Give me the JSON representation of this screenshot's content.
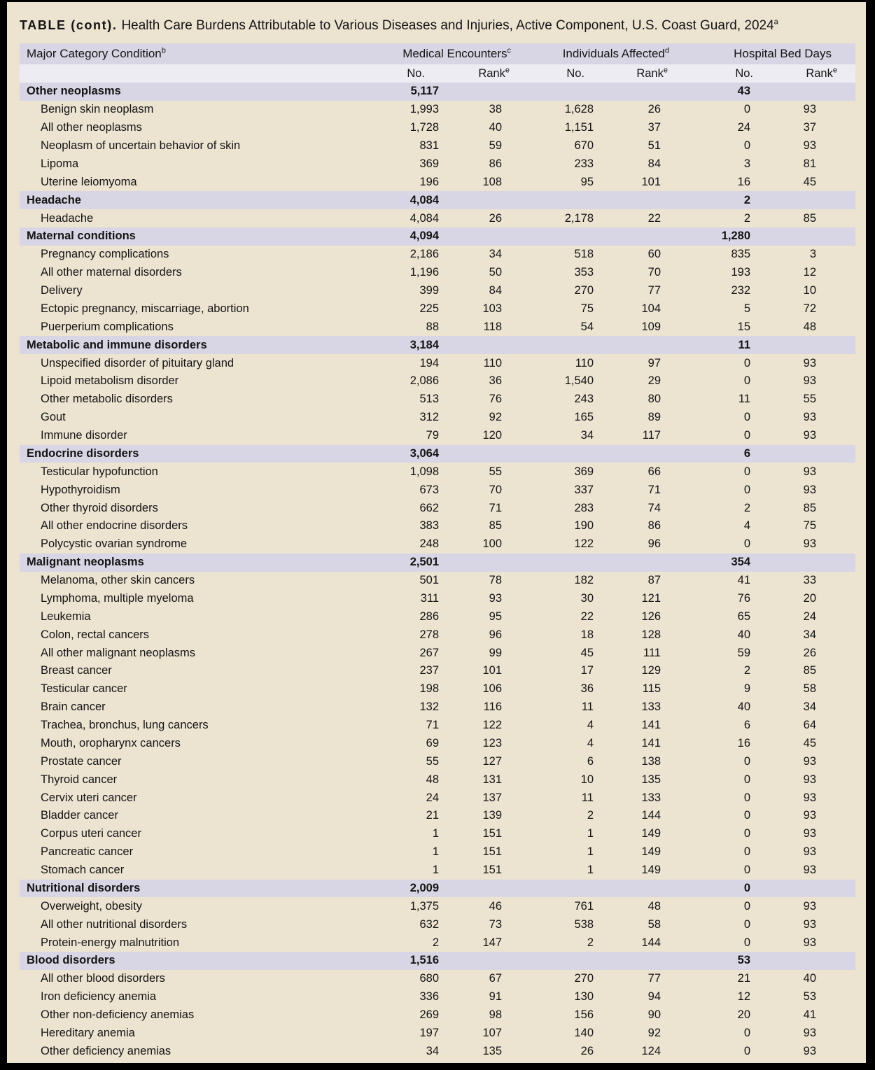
{
  "colors": {
    "frame": "#000000",
    "background": "#ECE3D1",
    "header_band": "#D8D6E4",
    "subheader_band": "#EDECF3",
    "text": "#141414"
  },
  "title": {
    "prefix": "TABLE (cont).",
    "text": "Health Care Burdens Attributable to Various Diseases and Injuries, Active Component, U.S. Coast Guard, 2024",
    "sup": "a"
  },
  "table": {
    "condition_header": {
      "label": "Major Category Condition",
      "sup": "b"
    },
    "groups": [
      {
        "label": "Medical Encounters",
        "sup": "c"
      },
      {
        "label": "Individuals Affected",
        "sup": "d"
      },
      {
        "label": "Hospital Bed Days",
        "sup": ""
      }
    ],
    "subheaders": {
      "no": "No.",
      "rank": "Rank",
      "rank_sup": "e"
    },
    "sections": [
      {
        "name": "Other neoplasms",
        "me_no": "5,117",
        "hbd_no": "43",
        "rows": [
          {
            "condition": "Benign skin neoplasm",
            "me_no": "1,993",
            "me_rank": "38",
            "ia_no": "1,628",
            "ia_rank": "26",
            "hbd_no": "0",
            "hbd_rank": "93"
          },
          {
            "condition": "All other neoplasms",
            "me_no": "1,728",
            "me_rank": "40",
            "ia_no": "1,151",
            "ia_rank": "37",
            "hbd_no": "24",
            "hbd_rank": "37"
          },
          {
            "condition": "Neoplasm of uncertain behavior of skin",
            "me_no": "831",
            "me_rank": "59",
            "ia_no": "670",
            "ia_rank": "51",
            "hbd_no": "0",
            "hbd_rank": "93"
          },
          {
            "condition": "Lipoma",
            "me_no": "369",
            "me_rank": "86",
            "ia_no": "233",
            "ia_rank": "84",
            "hbd_no": "3",
            "hbd_rank": "81"
          },
          {
            "condition": "Uterine leiomyoma",
            "me_no": "196",
            "me_rank": "108",
            "ia_no": "95",
            "ia_rank": "101",
            "hbd_no": "16",
            "hbd_rank": "45"
          }
        ]
      },
      {
        "name": "Headache",
        "me_no": "4,084",
        "hbd_no": "2",
        "rows": [
          {
            "condition": "Headache",
            "me_no": "4,084",
            "me_rank": "26",
            "ia_no": "2,178",
            "ia_rank": "22",
            "hbd_no": "2",
            "hbd_rank": "85"
          }
        ]
      },
      {
        "name": "Maternal conditions",
        "me_no": "4,094",
        "hbd_no": "1,280",
        "rows": [
          {
            "condition": "Pregnancy complications",
            "me_no": "2,186",
            "me_rank": "34",
            "ia_no": "518",
            "ia_rank": "60",
            "hbd_no": "835",
            "hbd_rank": "3"
          },
          {
            "condition": "All other maternal disorders",
            "me_no": "1,196",
            "me_rank": "50",
            "ia_no": "353",
            "ia_rank": "70",
            "hbd_no": "193",
            "hbd_rank": "12"
          },
          {
            "condition": "Delivery",
            "me_no": "399",
            "me_rank": "84",
            "ia_no": "270",
            "ia_rank": "77",
            "hbd_no": "232",
            "hbd_rank": "10"
          },
          {
            "condition": "Ectopic pregnancy, miscarriage, abortion",
            "me_no": "225",
            "me_rank": "103",
            "ia_no": "75",
            "ia_rank": "104",
            "hbd_no": "5",
            "hbd_rank": "72"
          },
          {
            "condition": "Puerperium complications",
            "me_no": "88",
            "me_rank": "118",
            "ia_no": "54",
            "ia_rank": "109",
            "hbd_no": "15",
            "hbd_rank": "48"
          }
        ]
      },
      {
        "name": "Metabolic and immune disorders",
        "me_no": "3,184",
        "hbd_no": "11",
        "rows": [
          {
            "condition": "Unspecified disorder of pituitary gland",
            "me_no": "194",
            "me_rank": "110",
            "ia_no": "110",
            "ia_rank": "97",
            "hbd_no": "0",
            "hbd_rank": "93"
          },
          {
            "condition": "Lipoid metabolism disorder",
            "me_no": "2,086",
            "me_rank": "36",
            "ia_no": "1,540",
            "ia_rank": "29",
            "hbd_no": "0",
            "hbd_rank": "93"
          },
          {
            "condition": "Other metabolic disorders",
            "me_no": "513",
            "me_rank": "76",
            "ia_no": "243",
            "ia_rank": "80",
            "hbd_no": "11",
            "hbd_rank": "55"
          },
          {
            "condition": "Gout",
            "me_no": "312",
            "me_rank": "92",
            "ia_no": "165",
            "ia_rank": "89",
            "hbd_no": "0",
            "hbd_rank": "93"
          },
          {
            "condition": "Immune disorder",
            "me_no": "79",
            "me_rank": "120",
            "ia_no": "34",
            "ia_rank": "117",
            "hbd_no": "0",
            "hbd_rank": "93"
          }
        ]
      },
      {
        "name": "Endocrine disorders",
        "me_no": "3,064",
        "hbd_no": "6",
        "rows": [
          {
            "condition": "Testicular hypofunction",
            "me_no": "1,098",
            "me_rank": "55",
            "ia_no": "369",
            "ia_rank": "66",
            "hbd_no": "0",
            "hbd_rank": "93"
          },
          {
            "condition": "Hypothyroidism",
            "me_no": "673",
            "me_rank": "70",
            "ia_no": "337",
            "ia_rank": "71",
            "hbd_no": "0",
            "hbd_rank": "93"
          },
          {
            "condition": "Other thyroid disorders",
            "me_no": "662",
            "me_rank": "71",
            "ia_no": "283",
            "ia_rank": "74",
            "hbd_no": "2",
            "hbd_rank": "85"
          },
          {
            "condition": "All other endocrine disorders",
            "me_no": "383",
            "me_rank": "85",
            "ia_no": "190",
            "ia_rank": "86",
            "hbd_no": "4",
            "hbd_rank": "75"
          },
          {
            "condition": "Polycystic ovarian syndrome",
            "me_no": "248",
            "me_rank": "100",
            "ia_no": "122",
            "ia_rank": "96",
            "hbd_no": "0",
            "hbd_rank": "93"
          }
        ]
      },
      {
        "name": "Malignant neoplasms",
        "me_no": "2,501",
        "hbd_no": "354",
        "rows": [
          {
            "condition": "Melanoma, other skin cancers",
            "me_no": "501",
            "me_rank": "78",
            "ia_no": "182",
            "ia_rank": "87",
            "hbd_no": "41",
            "hbd_rank": "33"
          },
          {
            "condition": "Lymphoma, multiple myeloma",
            "me_no": "311",
            "me_rank": "93",
            "ia_no": "30",
            "ia_rank": "121",
            "hbd_no": "76",
            "hbd_rank": "20"
          },
          {
            "condition": "Leukemia",
            "me_no": "286",
            "me_rank": "95",
            "ia_no": "22",
            "ia_rank": "126",
            "hbd_no": "65",
            "hbd_rank": "24"
          },
          {
            "condition": "Colon, rectal cancers",
            "me_no": "278",
            "me_rank": "96",
            "ia_no": "18",
            "ia_rank": "128",
            "hbd_no": "40",
            "hbd_rank": "34"
          },
          {
            "condition": "All other malignant neoplasms",
            "me_no": "267",
            "me_rank": "99",
            "ia_no": "45",
            "ia_rank": "111",
            "hbd_no": "59",
            "hbd_rank": "26"
          },
          {
            "condition": "Breast cancer",
            "me_no": "237",
            "me_rank": "101",
            "ia_no": "17",
            "ia_rank": "129",
            "hbd_no": "2",
            "hbd_rank": "85"
          },
          {
            "condition": "Testicular cancer",
            "me_no": "198",
            "me_rank": "106",
            "ia_no": "36",
            "ia_rank": "115",
            "hbd_no": "9",
            "hbd_rank": "58"
          },
          {
            "condition": "Brain cancer",
            "me_no": "132",
            "me_rank": "116",
            "ia_no": "11",
            "ia_rank": "133",
            "hbd_no": "40",
            "hbd_rank": "34"
          },
          {
            "condition": "Trachea, bronchus, lung cancers",
            "me_no": "71",
            "me_rank": "122",
            "ia_no": "4",
            "ia_rank": "141",
            "hbd_no": "6",
            "hbd_rank": "64"
          },
          {
            "condition": "Mouth, oropharynx cancers",
            "me_no": "69",
            "me_rank": "123",
            "ia_no": "4",
            "ia_rank": "141",
            "hbd_no": "16",
            "hbd_rank": "45"
          },
          {
            "condition": "Prostate cancer",
            "me_no": "55",
            "me_rank": "127",
            "ia_no": "6",
            "ia_rank": "138",
            "hbd_no": "0",
            "hbd_rank": "93"
          },
          {
            "condition": "Thyroid cancer",
            "me_no": "48",
            "me_rank": "131",
            "ia_no": "10",
            "ia_rank": "135",
            "hbd_no": "0",
            "hbd_rank": "93"
          },
          {
            "condition": "Cervix uteri cancer",
            "me_no": "24",
            "me_rank": "137",
            "ia_no": "11",
            "ia_rank": "133",
            "hbd_no": "0",
            "hbd_rank": "93"
          },
          {
            "condition": "Bladder cancer",
            "me_no": "21",
            "me_rank": "139",
            "ia_no": "2",
            "ia_rank": "144",
            "hbd_no": "0",
            "hbd_rank": "93"
          },
          {
            "condition": "Corpus uteri cancer",
            "me_no": "1",
            "me_rank": "151",
            "ia_no": "1",
            "ia_rank": "149",
            "hbd_no": "0",
            "hbd_rank": "93"
          },
          {
            "condition": "Pancreatic cancer",
            "me_no": "1",
            "me_rank": "151",
            "ia_no": "1",
            "ia_rank": "149",
            "hbd_no": "0",
            "hbd_rank": "93"
          },
          {
            "condition": "Stomach cancer",
            "me_no": "1",
            "me_rank": "151",
            "ia_no": "1",
            "ia_rank": "149",
            "hbd_no": "0",
            "hbd_rank": "93"
          }
        ]
      },
      {
        "name": "Nutritional disorders",
        "me_no": "2,009",
        "hbd_no": "0",
        "rows": [
          {
            "condition": "Overweight, obesity",
            "me_no": "1,375",
            "me_rank": "46",
            "ia_no": "761",
            "ia_rank": "48",
            "hbd_no": "0",
            "hbd_rank": "93"
          },
          {
            "condition": "All other nutritional disorders",
            "me_no": "632",
            "me_rank": "73",
            "ia_no": "538",
            "ia_rank": "58",
            "hbd_no": "0",
            "hbd_rank": "93"
          },
          {
            "condition": "Protein-energy malnutrition",
            "me_no": "2",
            "me_rank": "147",
            "ia_no": "2",
            "ia_rank": "144",
            "hbd_no": "0",
            "hbd_rank": "93"
          }
        ]
      },
      {
        "name": "Blood disorders",
        "me_no": "1,516",
        "hbd_no": "53",
        "rows": [
          {
            "condition": "All other blood disorders",
            "me_no": "680",
            "me_rank": "67",
            "ia_no": "270",
            "ia_rank": "77",
            "hbd_no": "21",
            "hbd_rank": "40"
          },
          {
            "condition": "Iron deficiency anemia",
            "me_no": "336",
            "me_rank": "91",
            "ia_no": "130",
            "ia_rank": "94",
            "hbd_no": "12",
            "hbd_rank": "53"
          },
          {
            "condition": "Other non-deficiency anemias",
            "me_no": "269",
            "me_rank": "98",
            "ia_no": "156",
            "ia_rank": "90",
            "hbd_no": "20",
            "hbd_rank": "41"
          },
          {
            "condition": "Hereditary anemia",
            "me_no": "197",
            "me_rank": "107",
            "ia_no": "140",
            "ia_rank": "92",
            "hbd_no": "0",
            "hbd_rank": "93"
          },
          {
            "condition": "Other deficiency anemias",
            "me_no": "34",
            "me_rank": "135",
            "ia_no": "26",
            "ia_rank": "124",
            "hbd_no": "0",
            "hbd_rank": "93"
          }
        ]
      }
    ]
  }
}
